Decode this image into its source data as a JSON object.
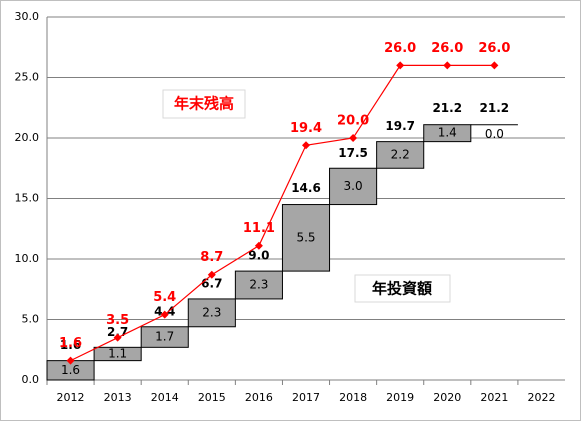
{
  "chart_data": {
    "type": "waterfall",
    "categories": [
      "2012",
      "2013",
      "2014",
      "2015",
      "2016",
      "2017",
      "2018",
      "2019",
      "2020",
      "2021",
      "2022"
    ],
    "series": [
      {
        "name": "年投資額",
        "color": "#a6a6a6",
        "values": [
          1.6,
          1.1,
          1.7,
          2.3,
          2.3,
          5.5,
          3.0,
          2.2,
          1.4,
          0.0,
          null
        ],
        "value_labels": [
          "1.6",
          "1.1",
          "1.7",
          "2.3",
          "2.3",
          "5.5",
          "3.0",
          "2.2",
          "1.4",
          "0.0",
          null
        ]
      },
      {
        "name": "年末残高",
        "type": "line",
        "color": "#ff0000",
        "values": [
          1.6,
          3.5,
          5.4,
          8.7,
          11.1,
          19.4,
          20.0,
          26.0,
          26.0,
          26.0,
          null
        ],
        "value_labels": [
          "1.6",
          "3.5",
          "5.4",
          "8.7",
          "11.1",
          "19.4",
          "20.0",
          "26.0",
          "26.0",
          "26.0",
          null
        ]
      }
    ],
    "totals": [
      1.6,
      2.7,
      4.4,
      6.7,
      9.0,
      14.6,
      17.5,
      19.7,
      21.2,
      21.2,
      null
    ],
    "total_labels": [
      "1.6",
      "2.7",
      "4.4",
      "6.7",
      "9.0",
      "14.6",
      "17.5",
      "19.7",
      "21.2",
      "21.2",
      null
    ],
    "ylim": [
      0,
      30
    ],
    "yticks": [
      {
        "value": 0,
        "label": "0.0"
      },
      {
        "value": 5,
        "label": "5.0"
      },
      {
        "value": 10,
        "label": "10.0"
      },
      {
        "value": 15,
        "label": "15.0"
      },
      {
        "value": 20,
        "label": "20.0"
      },
      {
        "value": 25,
        "label": "25.0"
      },
      {
        "value": 30,
        "label": "30.0"
      }
    ],
    "grid": true
  }
}
